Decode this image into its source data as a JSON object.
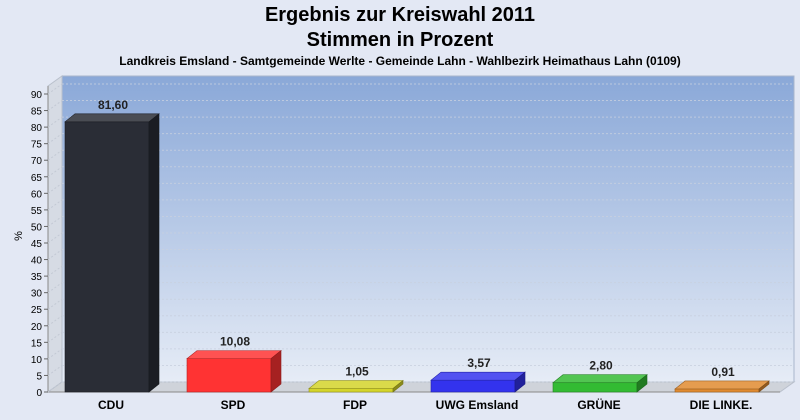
{
  "header": {
    "title_line1": "Ergebnis zur Kreiswahl 2011",
    "title_line2": "Stimmen in Prozent",
    "subtitle": "Landkreis Emsland - Samtgemeinde Werlte - Gemeinde Lahn - Wahlbezirk Heimathaus Lahn (0109)"
  },
  "chart_data": {
    "type": "bar",
    "title": "Ergebnis zur Kreiswahl 2011 Stimmen in Prozent",
    "subtitle": "Landkreis Emsland - Samtgemeinde Werlte - Gemeinde Lahn - Wahlbezirk Heimathaus Lahn (0109)",
    "xlabel": "",
    "ylabel": "%",
    "ylim": [
      0,
      90
    ],
    "yticks": [
      0,
      5,
      10,
      15,
      20,
      25,
      30,
      35,
      40,
      45,
      50,
      55,
      60,
      65,
      70,
      75,
      80,
      85,
      90
    ],
    "grid": true,
    "categories": [
      "CDU",
      "SPD",
      "FDP",
      "UWG Emsland",
      "GRÜNE",
      "DIE LINKE."
    ],
    "values": [
      81.6,
      10.08,
      1.05,
      3.57,
      2.8,
      0.91
    ],
    "value_labels": [
      "81,60",
      "10,08",
      "1,05",
      "3,57",
      "2,80",
      "0,91"
    ],
    "colors": [
      "#2a2d36",
      "#ff3333",
      "#d4d42a",
      "#3333ee",
      "#33bb33",
      "#e08a30"
    ]
  }
}
